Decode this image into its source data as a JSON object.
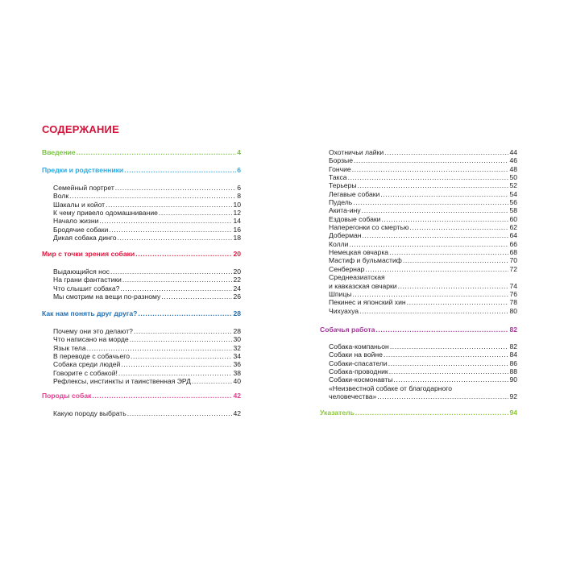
{
  "title": "СОДЕРЖАНИЕ",
  "colors": {
    "title": "#d4123a"
  },
  "left_column": [
    {
      "section": "Введение",
      "page": "4",
      "color": "#7ac142",
      "items": []
    },
    {
      "section": "Предки и родственники",
      "page": "6",
      "color": "#2aa9e0",
      "items": [
        {
          "label": "Семейный портрет",
          "page": "6"
        },
        {
          "label": "Волк",
          "page": "8"
        },
        {
          "label": "Шакалы и койот",
          "page": "10"
        },
        {
          "label": "К чему привело одомашнивание",
          "page": "12"
        },
        {
          "label": "Начало жизни",
          "page": "14"
        },
        {
          "label": "Бродячие собаки",
          "page": "16"
        },
        {
          "label": "Дикая собака динго",
          "page": "18"
        }
      ]
    },
    {
      "section": "Мир с точки зрения собаки",
      "page": "20",
      "color": "#e3173e",
      "items": [
        {
          "label": "Выдающийся нос",
          "page": "20"
        },
        {
          "label": "На грани фантастики",
          "page": "22"
        },
        {
          "label": "Что слышит собака?",
          "page": "24"
        },
        {
          "label": "Мы смотрим на вещи по-разному",
          "page": "26"
        }
      ]
    },
    {
      "section": "Как нам понять друг друга?",
      "page": "28",
      "color": "#1f6fb5",
      "items": [
        {
          "label": "Почему они это делают?",
          "page": "28"
        },
        {
          "label": "Что написано на морде",
          "page": "30"
        },
        {
          "label": "Язык тела",
          "page": "32"
        },
        {
          "label": "В переводе с собачьего",
          "page": "34"
        },
        {
          "label": "Собака среди людей",
          "page": "36"
        },
        {
          "label": "Говорите с собакой!",
          "page": "38"
        },
        {
          "label": "Рефлексы, инстинкты и таинственная ЭРД",
          "page": "40"
        }
      ]
    },
    {
      "section": "Породы собак",
      "page": "42",
      "color": "#e3418f",
      "items": [
        {
          "label": "Какую породу выбрать",
          "page": "42"
        }
      ]
    }
  ],
  "right_column": [
    {
      "section": "",
      "page": "",
      "color": "",
      "items": [
        {
          "label": "Охотничьи лайки",
          "page": "44"
        },
        {
          "label": "Борзые",
          "page": "46"
        },
        {
          "label": "Гончие",
          "page": "48"
        },
        {
          "label": "Такса",
          "page": "50"
        },
        {
          "label": "Терьеры",
          "page": "52"
        },
        {
          "label": "Легавые собаки",
          "page": "54"
        },
        {
          "label": "Пудель",
          "page": "56"
        },
        {
          "label": "Акита-ину",
          "page": "58"
        },
        {
          "label": "Ездовые собаки",
          "page": "60"
        },
        {
          "label": "Наперегонки со смертью",
          "page": "62"
        },
        {
          "label": "Доберман",
          "page": "64"
        },
        {
          "label": "Колли",
          "page": "66"
        },
        {
          "label": "Немецкая овчарка",
          "page": "68"
        },
        {
          "label": "Мастиф и бульмастиф",
          "page": "70"
        },
        {
          "label": "Сенбернар",
          "page": "72"
        },
        {
          "label_line1": "Среднеазиатская",
          "label": "и кавказская овчарки",
          "page": "74"
        },
        {
          "label": "Шпицы",
          "page": "76"
        },
        {
          "label": "Пекинес и японский хин",
          "page": "78"
        },
        {
          "label": "Чихуахуа",
          "page": "80"
        }
      ]
    },
    {
      "section": "Собачья работа",
      "page": "82",
      "color": "#a3379b",
      "items": [
        {
          "label": "Собака-компаньон",
          "page": "82"
        },
        {
          "label": "Собаки на войне",
          "page": "84"
        },
        {
          "label": "Собаки-спасатели",
          "page": "86"
        },
        {
          "label": "Собака-проводник",
          "page": "88"
        },
        {
          "label": "Собаки-космонавты",
          "page": "90"
        },
        {
          "label_line1": "«Неизвестной собаке от благодарного",
          "label": "человечества»",
          "page": "92"
        }
      ]
    },
    {
      "section": "Указатель",
      "page": "94",
      "color": "#8dc63f",
      "items": []
    }
  ]
}
